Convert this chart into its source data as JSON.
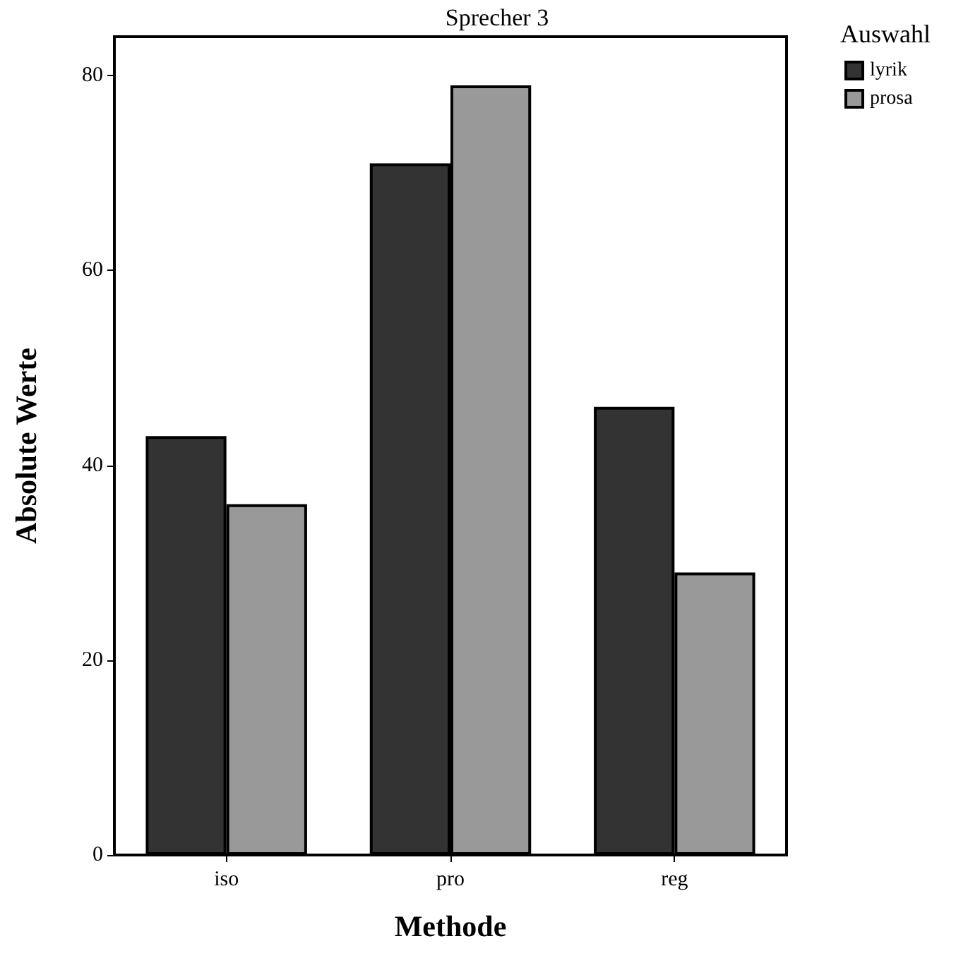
{
  "chart_data": {
    "type": "bar",
    "title": "Sprecher 3",
    "xlabel": "Methode",
    "ylabel": "Absolute Werte",
    "legend_title": "Auswahl",
    "categories": [
      "iso",
      "pro",
      "reg"
    ],
    "series": [
      {
        "name": "lyrik",
        "color": "#333333",
        "values": [
          43,
          71,
          46
        ]
      },
      {
        "name": "prosa",
        "color": "#999999",
        "values": [
          36,
          79,
          29
        ]
      }
    ],
    "ylim": [
      0,
      84
    ],
    "yticks": [
      0,
      20,
      40,
      60,
      80
    ],
    "grid": false,
    "legend": "top right"
  }
}
